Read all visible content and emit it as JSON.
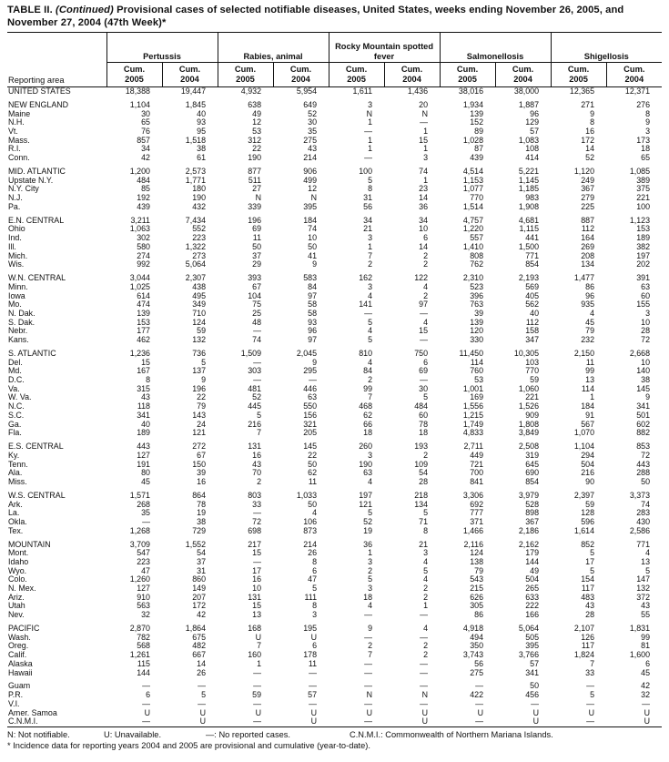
{
  "title": {
    "prefix": "TABLE II. ",
    "continued": "(Continued) ",
    "rest": "Provisional cases of selected notifiable diseases, United States, weeks ending November 26, 2005, and November 27, 2004 (47th Week)*"
  },
  "table": {
    "reporting_area_label": "Reporting area",
    "groups": [
      {
        "label": "Pertussis"
      },
      {
        "label": "Rabies, animal"
      },
      {
        "label": "Rocky Mountain spotted fever"
      },
      {
        "label": "Salmonellosis"
      },
      {
        "label": "Shigellosis"
      }
    ],
    "subheaders": [
      {
        "line1": "Cum.",
        "line2": "2005"
      },
      {
        "line1": "Cum.",
        "line2": "2004"
      }
    ],
    "rows": [
      {
        "area": "UNITED STATES",
        "values": [
          "18,388",
          "19,447",
          "4,932",
          "5,954",
          "1,611",
          "1,436",
          "38,016",
          "38,000",
          "12,365",
          "12,371"
        ]
      },
      {
        "area": "NEW ENGLAND",
        "gap": true,
        "values": [
          "1,104",
          "1,845",
          "638",
          "649",
          "3",
          "20",
          "1,934",
          "1,887",
          "271",
          "276"
        ]
      },
      {
        "area": "Maine",
        "values": [
          "30",
          "40",
          "49",
          "52",
          "N",
          "N",
          "139",
          "96",
          "9",
          "8"
        ]
      },
      {
        "area": "N.H.",
        "values": [
          "65",
          "93",
          "12",
          "30",
          "1",
          "—",
          "152",
          "129",
          "8",
          "9"
        ]
      },
      {
        "area": "Vt.",
        "values": [
          "76",
          "95",
          "53",
          "35",
          "—",
          "1",
          "89",
          "57",
          "16",
          "3"
        ]
      },
      {
        "area": "Mass.",
        "values": [
          "857",
          "1,518",
          "312",
          "275",
          "1",
          "15",
          "1,028",
          "1,083",
          "172",
          "173"
        ]
      },
      {
        "area": "R.I.",
        "values": [
          "34",
          "38",
          "22",
          "43",
          "1",
          "1",
          "87",
          "108",
          "14",
          "18"
        ]
      },
      {
        "area": "Conn.",
        "values": [
          "42",
          "61",
          "190",
          "214",
          "—",
          "3",
          "439",
          "414",
          "52",
          "65"
        ]
      },
      {
        "area": "MID. ATLANTIC",
        "gap": true,
        "values": [
          "1,200",
          "2,573",
          "877",
          "906",
          "100",
          "74",
          "4,514",
          "5,221",
          "1,120",
          "1,085"
        ]
      },
      {
        "area": "Upstate N.Y.",
        "values": [
          "484",
          "1,771",
          "511",
          "499",
          "5",
          "1",
          "1,153",
          "1,145",
          "249",
          "389"
        ]
      },
      {
        "area": "N.Y. City",
        "values": [
          "85",
          "180",
          "27",
          "12",
          "8",
          "23",
          "1,077",
          "1,185",
          "367",
          "375"
        ]
      },
      {
        "area": "N.J.",
        "values": [
          "192",
          "190",
          "N",
          "N",
          "31",
          "14",
          "770",
          "983",
          "279",
          "221"
        ]
      },
      {
        "area": "Pa.",
        "values": [
          "439",
          "432",
          "339",
          "395",
          "56",
          "36",
          "1,514",
          "1,908",
          "225",
          "100"
        ]
      },
      {
        "area": "E.N. CENTRAL",
        "gap": true,
        "values": [
          "3,211",
          "7,434",
          "196",
          "184",
          "34",
          "34",
          "4,757",
          "4,681",
          "887",
          "1,123"
        ]
      },
      {
        "area": "Ohio",
        "values": [
          "1,063",
          "552",
          "69",
          "74",
          "21",
          "10",
          "1,220",
          "1,115",
          "112",
          "153"
        ]
      },
      {
        "area": "Ind.",
        "values": [
          "302",
          "223",
          "11",
          "10",
          "3",
          "6",
          "557",
          "441",
          "164",
          "189"
        ]
      },
      {
        "area": "Ill.",
        "values": [
          "580",
          "1,322",
          "50",
          "50",
          "1",
          "14",
          "1,410",
          "1,500",
          "269",
          "382"
        ]
      },
      {
        "area": "Mich.",
        "values": [
          "274",
          "273",
          "37",
          "41",
          "7",
          "2",
          "808",
          "771",
          "208",
          "197"
        ]
      },
      {
        "area": "Wis.",
        "values": [
          "992",
          "5,064",
          "29",
          "9",
          "2",
          "2",
          "762",
          "854",
          "134",
          "202"
        ]
      },
      {
        "area": "W.N. CENTRAL",
        "gap": true,
        "values": [
          "3,044",
          "2,307",
          "393",
          "583",
          "162",
          "122",
          "2,310",
          "2,193",
          "1,477",
          "391"
        ]
      },
      {
        "area": "Minn.",
        "values": [
          "1,025",
          "438",
          "67",
          "84",
          "3",
          "4",
          "523",
          "569",
          "86",
          "63"
        ]
      },
      {
        "area": "Iowa",
        "values": [
          "614",
          "495",
          "104",
          "97",
          "4",
          "2",
          "396",
          "405",
          "96",
          "60"
        ]
      },
      {
        "area": "Mo.",
        "values": [
          "474",
          "349",
          "75",
          "58",
          "141",
          "97",
          "763",
          "562",
          "935",
          "155"
        ]
      },
      {
        "area": "N. Dak.",
        "values": [
          "139",
          "710",
          "25",
          "58",
          "—",
          "—",
          "39",
          "40",
          "4",
          "3"
        ]
      },
      {
        "area": "S. Dak.",
        "values": [
          "153",
          "124",
          "48",
          "93",
          "5",
          "4",
          "139",
          "112",
          "45",
          "10"
        ]
      },
      {
        "area": "Nebr.",
        "values": [
          "177",
          "59",
          "—",
          "96",
          "4",
          "15",
          "120",
          "158",
          "79",
          "28"
        ]
      },
      {
        "area": "Kans.",
        "values": [
          "462",
          "132",
          "74",
          "97",
          "5",
          "—",
          "330",
          "347",
          "232",
          "72"
        ]
      },
      {
        "area": "S. ATLANTIC",
        "gap": true,
        "values": [
          "1,236",
          "736",
          "1,509",
          "2,045",
          "810",
          "750",
          "11,450",
          "10,305",
          "2,150",
          "2,668"
        ]
      },
      {
        "area": "Del.",
        "values": [
          "15",
          "5",
          "—",
          "9",
          "4",
          "6",
          "114",
          "103",
          "11",
          "10"
        ]
      },
      {
        "area": "Md.",
        "values": [
          "167",
          "137",
          "303",
          "295",
          "84",
          "69",
          "760",
          "770",
          "99",
          "140"
        ]
      },
      {
        "area": "D.C.",
        "values": [
          "8",
          "9",
          "—",
          "—",
          "2",
          "—",
          "53",
          "59",
          "13",
          "38"
        ]
      },
      {
        "area": "Va.",
        "values": [
          "315",
          "196",
          "481",
          "446",
          "99",
          "30",
          "1,001",
          "1,060",
          "114",
          "145"
        ]
      },
      {
        "area": "W. Va.",
        "values": [
          "43",
          "22",
          "52",
          "63",
          "7",
          "5",
          "169",
          "221",
          "1",
          "9"
        ]
      },
      {
        "area": "N.C.",
        "values": [
          "118",
          "79",
          "445",
          "550",
          "468",
          "484",
          "1,556",
          "1,526",
          "184",
          "341"
        ]
      },
      {
        "area": "S.C.",
        "values": [
          "341",
          "143",
          "5",
          "156",
          "62",
          "60",
          "1,215",
          "909",
          "91",
          "501"
        ]
      },
      {
        "area": "Ga.",
        "values": [
          "40",
          "24",
          "216",
          "321",
          "66",
          "78",
          "1,749",
          "1,808",
          "567",
          "602"
        ]
      },
      {
        "area": "Fla.",
        "values": [
          "189",
          "121",
          "7",
          "205",
          "18",
          "18",
          "4,833",
          "3,849",
          "1,070",
          "882"
        ]
      },
      {
        "area": "E.S. CENTRAL",
        "gap": true,
        "values": [
          "443",
          "272",
          "131",
          "145",
          "260",
          "193",
          "2,711",
          "2,508",
          "1,104",
          "853"
        ]
      },
      {
        "area": "Ky.",
        "values": [
          "127",
          "67",
          "16",
          "22",
          "3",
          "2",
          "449",
          "319",
          "294",
          "72"
        ]
      },
      {
        "area": "Tenn.",
        "values": [
          "191",
          "150",
          "43",
          "50",
          "190",
          "109",
          "721",
          "645",
          "504",
          "443"
        ]
      },
      {
        "area": "Ala.",
        "values": [
          "80",
          "39",
          "70",
          "62",
          "63",
          "54",
          "700",
          "690",
          "216",
          "288"
        ]
      },
      {
        "area": "Miss.",
        "values": [
          "45",
          "16",
          "2",
          "11",
          "4",
          "28",
          "841",
          "854",
          "90",
          "50"
        ]
      },
      {
        "area": "W.S. CENTRAL",
        "gap": true,
        "values": [
          "1,571",
          "864",
          "803",
          "1,033",
          "197",
          "218",
          "3,306",
          "3,979",
          "2,397",
          "3,373"
        ]
      },
      {
        "area": "Ark.",
        "values": [
          "268",
          "78",
          "33",
          "50",
          "121",
          "134",
          "692",
          "528",
          "59",
          "74"
        ]
      },
      {
        "area": "La.",
        "values": [
          "35",
          "19",
          "—",
          "4",
          "5",
          "5",
          "777",
          "898",
          "128",
          "283"
        ]
      },
      {
        "area": "Okla.",
        "values": [
          "—",
          "38",
          "72",
          "106",
          "52",
          "71",
          "371",
          "367",
          "596",
          "430"
        ]
      },
      {
        "area": "Tex.",
        "values": [
          "1,268",
          "729",
          "698",
          "873",
          "19",
          "8",
          "1,466",
          "2,186",
          "1,614",
          "2,586"
        ]
      },
      {
        "area": "MOUNTAIN",
        "gap": true,
        "values": [
          "3,709",
          "1,552",
          "217",
          "214",
          "36",
          "21",
          "2,116",
          "2,162",
          "852",
          "771"
        ]
      },
      {
        "area": "Mont.",
        "values": [
          "547",
          "54",
          "15",
          "26",
          "1",
          "3",
          "124",
          "179",
          "5",
          "4"
        ]
      },
      {
        "area": "Idaho",
        "values": [
          "223",
          "37",
          "—",
          "8",
          "3",
          "4",
          "138",
          "144",
          "17",
          "13"
        ]
      },
      {
        "area": "Wyo.",
        "values": [
          "47",
          "31",
          "17",
          "6",
          "2",
          "5",
          "79",
          "49",
          "5",
          "5"
        ]
      },
      {
        "area": "Colo.",
        "values": [
          "1,260",
          "860",
          "16",
          "47",
          "5",
          "4",
          "543",
          "504",
          "154",
          "147"
        ]
      },
      {
        "area": "N. Mex.",
        "values": [
          "127",
          "149",
          "10",
          "5",
          "3",
          "2",
          "215",
          "265",
          "117",
          "132"
        ]
      },
      {
        "area": "Ariz.",
        "values": [
          "910",
          "207",
          "131",
          "111",
          "18",
          "2",
          "626",
          "633",
          "483",
          "372"
        ]
      },
      {
        "area": "Utah",
        "values": [
          "563",
          "172",
          "15",
          "8",
          "4",
          "1",
          "305",
          "222",
          "43",
          "43"
        ]
      },
      {
        "area": "Nev.",
        "values": [
          "32",
          "42",
          "13",
          "3",
          "—",
          "—",
          "86",
          "166",
          "28",
          "55"
        ]
      },
      {
        "area": "PACIFIC",
        "gap": true,
        "values": [
          "2,870",
          "1,864",
          "168",
          "195",
          "9",
          "4",
          "4,918",
          "5,064",
          "2,107",
          "1,831"
        ]
      },
      {
        "area": "Wash.",
        "values": [
          "782",
          "675",
          "U",
          "U",
          "—",
          "—",
          "494",
          "505",
          "126",
          "99"
        ]
      },
      {
        "area": "Oreg.",
        "values": [
          "568",
          "482",
          "7",
          "6",
          "2",
          "2",
          "350",
          "395",
          "117",
          "81"
        ]
      },
      {
        "area": "Calif.",
        "values": [
          "1,261",
          "667",
          "160",
          "178",
          "7",
          "2",
          "3,743",
          "3,766",
          "1,824",
          "1,600"
        ]
      },
      {
        "area": "Alaska",
        "values": [
          "115",
          "14",
          "1",
          "11",
          "—",
          "—",
          "56",
          "57",
          "7",
          "6"
        ]
      },
      {
        "area": "Hawaii",
        "values": [
          "144",
          "26",
          "—",
          "—",
          "—",
          "—",
          "275",
          "341",
          "33",
          "45"
        ]
      },
      {
        "area": "Guam",
        "gap": true,
        "values": [
          "—",
          "—",
          "—",
          "—",
          "—",
          "—",
          "—",
          "50",
          "—",
          "42"
        ]
      },
      {
        "area": "P.R.",
        "values": [
          "6",
          "5",
          "59",
          "57",
          "N",
          "N",
          "422",
          "456",
          "5",
          "32"
        ]
      },
      {
        "area": "V.I.",
        "values": [
          "—",
          "—",
          "—",
          "—",
          "—",
          "—",
          "—",
          "—",
          "—",
          "—"
        ]
      },
      {
        "area": "Amer. Samoa",
        "values": [
          "U",
          "U",
          "U",
          "U",
          "U",
          "U",
          "U",
          "U",
          "U",
          "U"
        ]
      },
      {
        "area": "C.N.M.I.",
        "values": [
          "—",
          "U",
          "—",
          "U",
          "—",
          "U",
          "—",
          "U",
          "—",
          "U"
        ]
      }
    ]
  },
  "footnotes": {
    "legend": [
      "N: Not notifiable.",
      "U: Unavailable.",
      "—: No reported cases.",
      "C.N.M.I.: Commonwealth of Northern Mariana Islands."
    ],
    "note": "* Incidence data for reporting years 2004 and 2005 are provisional and cumulative (year-to-date)."
  }
}
